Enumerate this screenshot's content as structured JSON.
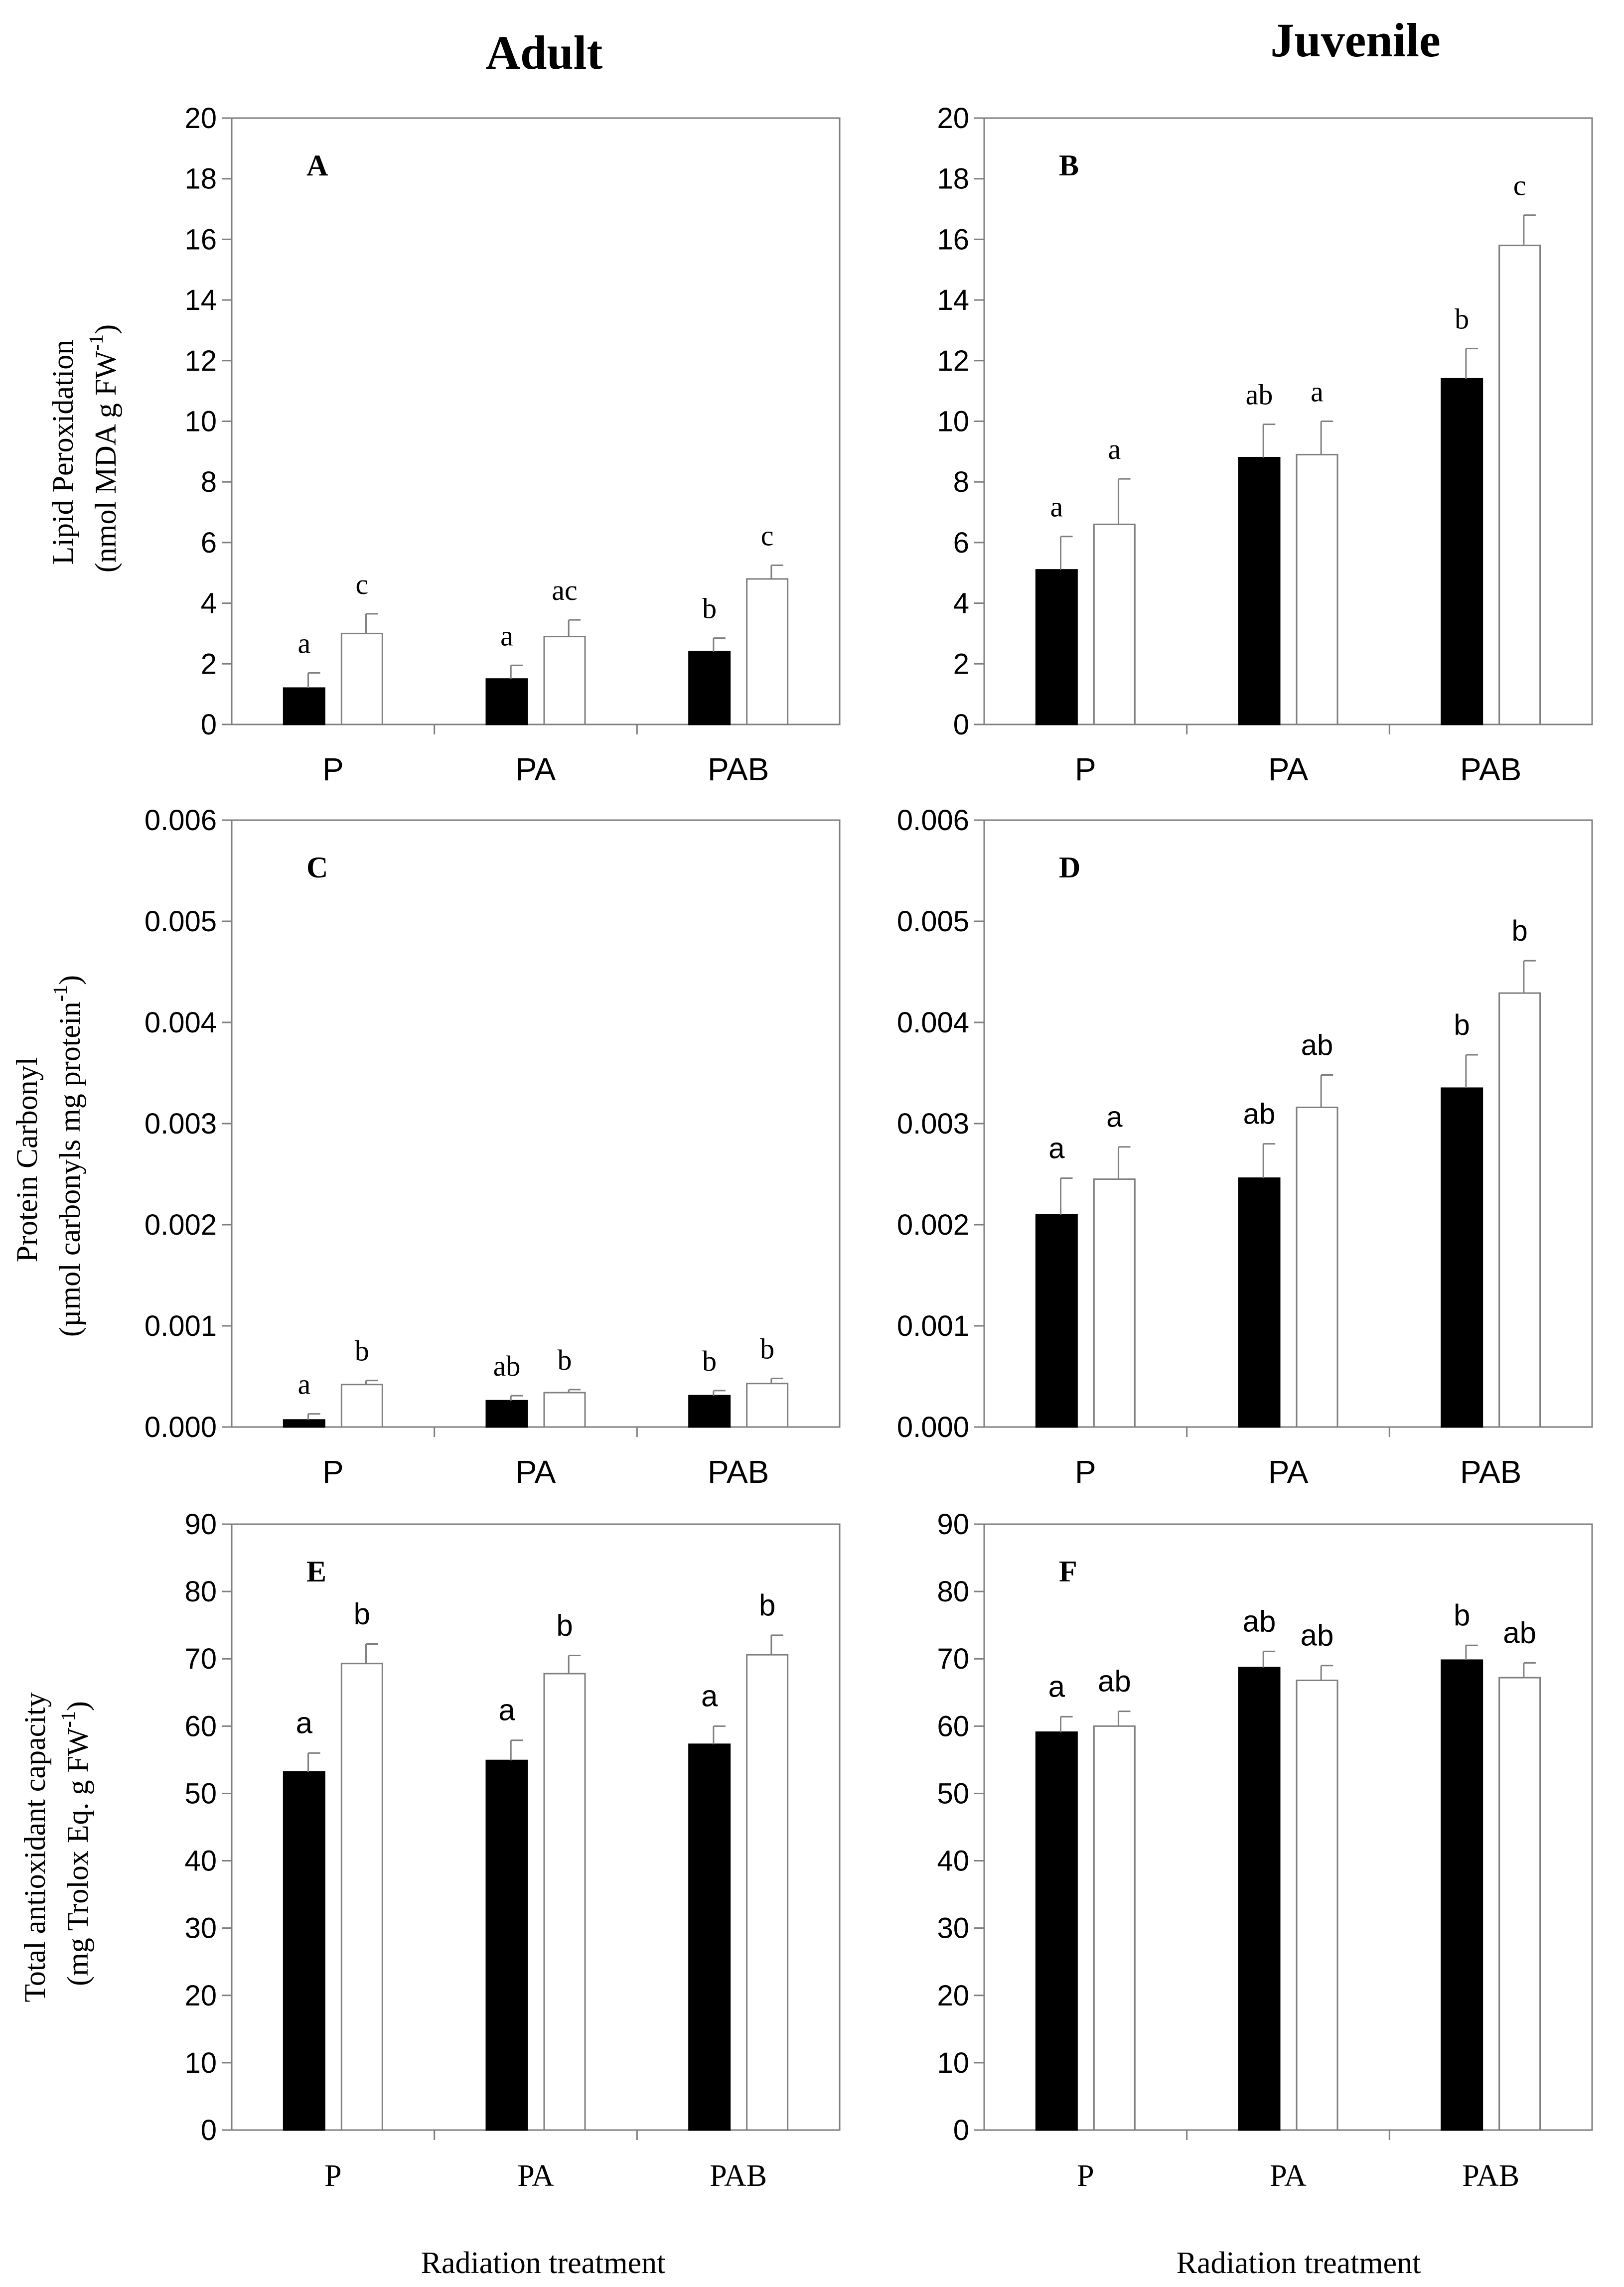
{
  "column_titles": [
    "Adult",
    "Juvenile"
  ],
  "row_ylabels": [
    {
      "line1": "Lipid Peroxidation",
      "line2_pre": "(nmol MDA g FW",
      "line2_sup": "-1",
      "line2_post": ")"
    },
    {
      "line1": "Protein Carbonyl",
      "line2_pre": "(µmol carbonyls mg protein",
      "line2_sup": "-1",
      "line2_post": ")"
    },
    {
      "line1": "Total antioxidant capacity",
      "line2_pre": "(mg Trolox Eq. g FW",
      "line2_sup": "-1",
      "line2_post": ")"
    }
  ],
  "xlabel": "Radiation treatment",
  "colors": {
    "filled": "#000000",
    "open": "#ffffff",
    "axis": "#7f7f7f"
  },
  "chart_data": [
    {
      "type": "bar",
      "panel": "A",
      "column": "Adult",
      "categories": [
        "P",
        "PA",
        "PAB"
      ],
      "yticks": [
        "0",
        "2",
        "4",
        "6",
        "8",
        "10",
        "12",
        "14",
        "16",
        "18",
        "20"
      ],
      "ylim": [
        0,
        20
      ],
      "series": [
        {
          "name": "filled",
          "values": [
            1.2,
            1.5,
            2.4
          ],
          "errors": [
            0.5,
            0.45,
            0.45
          ],
          "letters": [
            "a",
            "a",
            "b"
          ]
        },
        {
          "name": "open",
          "values": [
            3.0,
            2.9,
            4.8
          ],
          "errors": [
            0.65,
            0.55,
            0.45
          ],
          "letters": [
            "c",
            "ac",
            "c"
          ]
        }
      ]
    },
    {
      "type": "bar",
      "panel": "B",
      "column": "Juvenile",
      "categories": [
        "P",
        "PA",
        "PAB"
      ],
      "yticks": [
        "0",
        "2",
        "4",
        "6",
        "8",
        "10",
        "12",
        "14",
        "16",
        "18",
        "20"
      ],
      "ylim": [
        0,
        20
      ],
      "series": [
        {
          "name": "filled",
          "values": [
            5.1,
            8.8,
            11.4
          ],
          "errors": [
            1.1,
            1.1,
            1.0
          ],
          "letters": [
            "a",
            "ab",
            "b"
          ]
        },
        {
          "name": "open",
          "values": [
            6.6,
            8.9,
            15.8
          ],
          "errors": [
            1.5,
            1.1,
            1.0
          ],
          "letters": [
            "a",
            "a",
            "c"
          ]
        }
      ]
    },
    {
      "type": "bar",
      "panel": "C",
      "column": "Adult",
      "categories": [
        "P",
        "PA",
        "PAB"
      ],
      "yticks": [
        "0.000",
        "0.001",
        "0.002",
        "0.003",
        "0.004",
        "0.005",
        "0.006"
      ],
      "ylim": [
        0,
        0.006
      ],
      "series": [
        {
          "name": "filled",
          "values": [
            7e-05,
            0.00026,
            0.00031
          ],
          "errors": [
            6e-05,
            5e-05,
            5e-05
          ],
          "letters": [
            "a",
            "ab",
            "b"
          ]
        },
        {
          "name": "open",
          "values": [
            0.00042,
            0.00034,
            0.00043
          ],
          "errors": [
            4e-05,
            3e-05,
            5e-05
          ],
          "letters": [
            "b",
            "b",
            "b"
          ]
        }
      ]
    },
    {
      "type": "bar",
      "panel": "D",
      "column": "Juvenile",
      "categories": [
        "P",
        "PA",
        "PAB"
      ],
      "yticks": [
        "0.000",
        "0.001",
        "0.002",
        "0.003",
        "0.004",
        "0.005",
        "0.006"
      ],
      "ylim": [
        0,
        0.006
      ],
      "series": [
        {
          "name": "filled",
          "values": [
            0.0021,
            0.00246,
            0.00335
          ],
          "errors": [
            0.00036,
            0.00034,
            0.00033
          ],
          "letters": [
            "a",
            "ab",
            "b"
          ]
        },
        {
          "name": "open",
          "values": [
            0.00245,
            0.00316,
            0.00429
          ],
          "errors": [
            0.00032,
            0.00032,
            0.00032
          ],
          "letters": [
            "a",
            "ab",
            "b"
          ]
        }
      ]
    },
    {
      "type": "bar",
      "panel": "E",
      "column": "Adult",
      "categories": [
        "P",
        "PA",
        "PAB"
      ],
      "yticks": [
        "0",
        "10",
        "20",
        "30",
        "40",
        "50",
        "60",
        "70",
        "80",
        "90"
      ],
      "ylim": [
        0,
        90
      ],
      "series": [
        {
          "name": "filled",
          "values": [
            53.2,
            54.9,
            57.3
          ],
          "errors": [
            2.8,
            3.0,
            2.7
          ],
          "letters": [
            "a",
            "a",
            "a"
          ]
        },
        {
          "name": "open",
          "values": [
            69.3,
            67.8,
            70.6
          ],
          "errors": [
            2.9,
            2.7,
            2.9
          ],
          "letters": [
            "b",
            "b",
            "b"
          ]
        }
      ]
    },
    {
      "type": "bar",
      "panel": "F",
      "column": "Juvenile",
      "categories": [
        "P",
        "PA",
        "PAB"
      ],
      "yticks": [
        "0",
        "10",
        "20",
        "30",
        "40",
        "50",
        "60",
        "70",
        "80",
        "90"
      ],
      "ylim": [
        0,
        90
      ],
      "series": [
        {
          "name": "filled",
          "values": [
            59.1,
            68.7,
            69.8
          ],
          "errors": [
            2.3,
            2.4,
            2.2
          ],
          "letters": [
            "a",
            "ab",
            "b"
          ]
        },
        {
          "name": "open",
          "values": [
            60.0,
            66.8,
            67.2
          ],
          "errors": [
            2.2,
            2.2,
            2.2
          ],
          "letters": [
            "ab",
            "ab",
            "ab"
          ]
        }
      ]
    }
  ]
}
